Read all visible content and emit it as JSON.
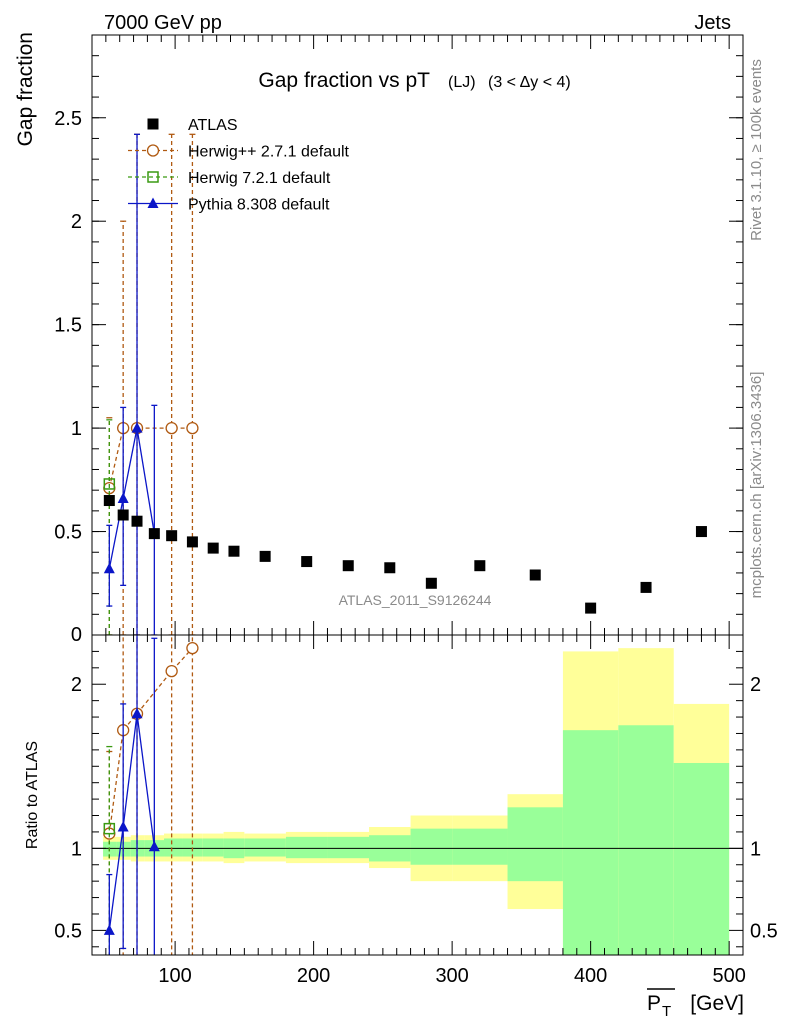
{
  "header": {
    "left": "7000 GeV pp",
    "right": "Jets"
  },
  "side_labels": {
    "rivet": "Rivet 3.1.10, ≥ 100k events",
    "mcplots": "mcplots.cern.ch [arXiv:1306.3436]"
  },
  "watermark": "ATLAS_2011_S9126244",
  "colors": {
    "atlas": "#000000",
    "herwigpp": "#b05a12",
    "herwig7": "#3a9a12",
    "pythia": "#0b16c8",
    "band_outer": "#ffff99",
    "band_inner": "#99ff99"
  },
  "chart_data": [
    {
      "type": "scatter",
      "title": "Gap fraction vs pT",
      "title_suffix": "(LJ)",
      "title_range": "(3 < Δy < 4)",
      "ylabel": "Gap fraction",
      "xlim": [
        40,
        510
      ],
      "ylim": [
        0,
        2.9
      ],
      "yticks": [
        0.5,
        1,
        1.5,
        2,
        2.5
      ],
      "ytick_labels": [
        "0.5",
        "1",
        "1.5",
        "2",
        "2.5"
      ],
      "y_zero_label": "0",
      "legend_position": "top-left",
      "series": [
        {
          "name": "ATLAS",
          "marker": "filled-square",
          "x": [
            52.5,
            62.5,
            72.5,
            85,
            97.5,
            112.5,
            127.5,
            142.5,
            165,
            195,
            225,
            255,
            285,
            320,
            360,
            400,
            440,
            480
          ],
          "y": [
            0.65,
            0.58,
            0.55,
            0.49,
            0.48,
            0.45,
            0.42,
            0.405,
            0.38,
            0.355,
            0.335,
            0.325,
            0.25,
            0.335,
            0.29,
            0.13,
            0.23,
            0.5
          ]
        },
        {
          "name": "Herwig++ 2.7.1 default",
          "marker": "open-circle",
          "x": [
            52.5,
            62.5,
            72.5,
            97.5,
            112.5
          ],
          "y": [
            0.71,
            1.0,
            1.0,
            1.0,
            1.0
          ],
          "yerr_low": [
            0.71,
            1.0,
            1.0,
            1.0,
            1.0
          ],
          "yerr_high": [
            0.34,
            1.0,
            1.42,
            1.42,
            1.42
          ]
        },
        {
          "name": "Herwig 7.2.1 default",
          "marker": "open-square",
          "x": [
            52.5
          ],
          "y": [
            0.73
          ],
          "yerr_low": [
            0.73
          ],
          "yerr_high": [
            0.31
          ]
        },
        {
          "name": "Pythia 8.308 default",
          "marker": "filled-triangle",
          "x": [
            52.5,
            62.5,
            72.5,
            85
          ],
          "y": [
            0.32,
            0.66,
            1.0,
            0.49
          ],
          "yerr_low": [
            0.18,
            0.42,
            1.0,
            0.49
          ],
          "yerr_high": [
            0.21,
            0.44,
            1.42,
            0.62
          ]
        }
      ]
    },
    {
      "type": "line",
      "ylabel": "Ratio to ATLAS",
      "xlabel": "P",
      "xlabel_sub": "T",
      "xlabel_unit": "[GeV]",
      "xlim": [
        40,
        510
      ],
      "ylim": [
        0.35,
        2.3
      ],
      "xticks": [
        100,
        200,
        300,
        400,
        500
      ],
      "xtick_labels": [
        "100",
        "200",
        "300",
        "400",
        "500"
      ],
      "yticks": [
        0.5,
        1,
        2
      ],
      "ytick_labels": [
        "0.5",
        "1",
        "2"
      ],
      "reference_line": 1,
      "bands": {
        "edges": [
          48,
          58,
          68,
          78,
          92,
          105,
          120,
          135,
          150,
          180,
          210,
          240,
          270,
          300,
          340,
          380,
          420,
          460,
          500
        ],
        "inner": [
          [
            0.95,
            1.04
          ],
          [
            0.95,
            1.04
          ],
          [
            0.95,
            1.05
          ],
          [
            0.95,
            1.05
          ],
          [
            0.95,
            1.06
          ],
          [
            0.95,
            1.06
          ],
          [
            0.95,
            1.06
          ],
          [
            0.94,
            1.06
          ],
          [
            0.95,
            1.06
          ],
          [
            0.94,
            1.07
          ],
          [
            0.94,
            1.07
          ],
          [
            0.92,
            1.08
          ],
          [
            0.9,
            1.12
          ],
          [
            0.9,
            1.12
          ],
          [
            0.8,
            1.25
          ],
          [
            0.3,
            1.72
          ],
          [
            0.3,
            1.75
          ],
          [
            0.3,
            1.52
          ]
        ],
        "outer": [
          [
            0.93,
            1.07
          ],
          [
            0.93,
            1.07
          ],
          [
            0.92,
            1.08
          ],
          [
            0.92,
            1.08
          ],
          [
            0.92,
            1.09
          ],
          [
            0.92,
            1.09
          ],
          [
            0.92,
            1.09
          ],
          [
            0.91,
            1.1
          ],
          [
            0.92,
            1.09
          ],
          [
            0.91,
            1.1
          ],
          [
            0.91,
            1.1
          ],
          [
            0.88,
            1.13
          ],
          [
            0.8,
            1.2
          ],
          [
            0.8,
            1.2
          ],
          [
            0.63,
            1.33
          ],
          [
            0.3,
            2.2
          ],
          [
            0.3,
            2.22
          ],
          [
            0.3,
            1.88
          ]
        ]
      },
      "series": [
        {
          "name": "Herwig++ 2.7.1 default",
          "x": [
            52.5,
            62.5,
            72.5,
            97.5,
            112.5
          ],
          "y": [
            1.09,
            1.72,
            1.82,
            2.08,
            2.22
          ],
          "yerr_low": [
            1.09,
            1.72,
            1.82,
            2.08,
            2.22
          ],
          "yerr_high": [
            0.5,
            1.72,
            2.5,
            2.5,
            2.5
          ]
        },
        {
          "name": "Herwig 7.2.1 default",
          "x": [
            52.5
          ],
          "y": [
            1.12
          ],
          "yerr_low": [
            1.12
          ],
          "yerr_high": [
            0.5
          ]
        },
        {
          "name": "Pythia 8.308 default",
          "x": [
            52.5,
            62.5,
            72.5,
            85
          ],
          "y": [
            0.5,
            1.13,
            1.82,
            1.01
          ],
          "yerr_low": [
            0.29,
            0.74,
            1.82,
            1.01
          ],
          "yerr_high": [
            0.34,
            0.75,
            2.5,
            1.27
          ]
        }
      ]
    }
  ]
}
